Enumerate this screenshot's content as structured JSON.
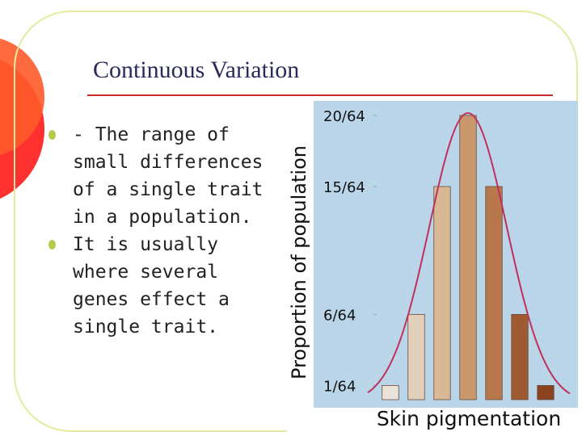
{
  "slide": {
    "title": "Continuous Variation",
    "bullets": [
      "- The range of small differences of a single trait in a population.",
      "It is usually where several genes effect a single trait."
    ]
  },
  "chart_data": {
    "type": "bar",
    "y_label": "Proportion of population",
    "x_label": "Skin pigmentation",
    "categories": [
      null,
      null,
      null,
      null,
      null,
      null,
      null
    ],
    "values": [
      0.015625,
      0.09375,
      0.234375,
      0.3125,
      0.234375,
      0.09375,
      0.015625
    ],
    "colors": [
      "#ebe3da",
      "#e3d0bc",
      "#d9b896",
      "#c9996d",
      "#b8784b",
      "#a05a30",
      "#8a4220"
    ],
    "ylim": [
      0,
      0.3125
    ],
    "yticks": [
      {
        "value": 0.015625,
        "label": "1/64"
      },
      {
        "value": 0.09375,
        "label": "6/64"
      },
      {
        "value": 0.234375,
        "label": "15/64"
      },
      {
        "value": 0.3125,
        "label": "20/64"
      }
    ]
  }
}
